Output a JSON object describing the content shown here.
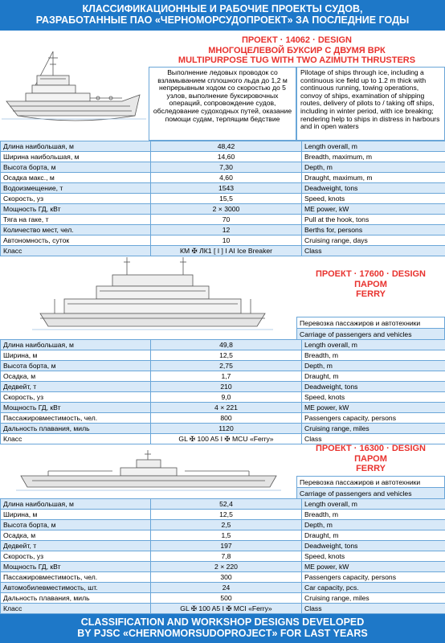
{
  "header": {
    "line1": "КЛАССИФИКАЦИОННЫЕ И РАБОЧИЕ ПРОЕКТЫ СУДОВ,",
    "line2": "РАЗРАБОТАННЫЕ ПАО «ЧЕРНОМОРСУДОПРОЕКТ» ЗА ПОСЛЕДНИЕ ГОДЫ"
  },
  "footer": {
    "line1": "CLASSIFICATION AND WORKSHOP DESIGNS DEVELOPED",
    "line2": "BY PJSC «CHERNOMORSUDOPROJECT» FOR LAST YEARS"
  },
  "projects": [
    {
      "title1": "ПРОЕКТ · 14062 · DESIGN",
      "title2": "МНОГОЦЕЛЕВОЙ БУКСИР С ДВУМЯ ВРК",
      "title3": "MULTIPURPOSE TUG WITH TWO AZIMUTH THRUSTERS",
      "desc_ru": "Выполнение ледовых проводок со взламыванием сплошного льда до 1,2 м непрерывным ходом со скоростью до 5 узлов, выполнение буксировочных операций, сопровождение судов, обследование судоходных путей, оказание помощи судам, терпящим бедствие",
      "desc_en": "Pilotage of ships through ice, including a continuous ice field up to 1.2 m thick with continuous running, towing operations, convoy of ships, examination of shipping routes, delivery of pilots to / taking off ships, including in winter period, with ice breaking; rendering help to ships in distress in harbours and in open waters",
      "specs": [
        {
          "ru": "Длина наибольшая, м",
          "val": "48,42",
          "en": "Length overall, m"
        },
        {
          "ru": "Ширина наибольшая, м",
          "val": "14,60",
          "en": "Breadth, maximum, m"
        },
        {
          "ru": "Высота борта, м",
          "val": "7,30",
          "en": "Depth, m"
        },
        {
          "ru": "Осадка макс., м",
          "val": "4,60",
          "en": "Draught, maximum, m"
        },
        {
          "ru": "Водоизмещение, т",
          "val": "1543",
          "en": "Deadweight, tons"
        },
        {
          "ru": "Скорость, уз",
          "val": "15,5",
          "en": "Speed, knots"
        },
        {
          "ru": "Мощность ГД, кВт",
          "val": "2 × 3000",
          "en": "ME power, kW"
        },
        {
          "ru": "Тяга на гаке, т",
          "val": "70",
          "en": "Pull at the hook, tons"
        },
        {
          "ru": "Количество мест, чел.",
          "val": "12",
          "en": "Berths for, persons"
        },
        {
          "ru": "Автономность, суток",
          "val": "10",
          "en": "Cruising range, days"
        },
        {
          "ru": "Класс",
          "val": "КМ ✠ ЛК1 [ I ] I AI Ice Breaker",
          "en": "Class"
        }
      ]
    },
    {
      "title1": "ПРОЕКТ · 17600 · DESIGN",
      "title2": "ПАРОМ",
      "title3": "FERRY",
      "purpose_ru": "Перевозка пассажиров и автотехники",
      "purpose_en": "Carriage of passengers and vehicles",
      "specs": [
        {
          "ru": "Длина наибольшая, м",
          "val": "49,8",
          "en": "Length overall, m"
        },
        {
          "ru": "Ширина, м",
          "val": "12,5",
          "en": "Breadth, m"
        },
        {
          "ru": "Высота борта, м",
          "val": "2,75",
          "en": "Depth, m"
        },
        {
          "ru": "Осадка, м",
          "val": "1,7",
          "en": "Draught, m"
        },
        {
          "ru": "Дедвейт, т",
          "val": "210",
          "en": "Deadweight, tons"
        },
        {
          "ru": "Скорость, уз",
          "val": "9,0",
          "en": "Speed, knots"
        },
        {
          "ru": "Мощность ГД, кВт",
          "val": "4 × 221",
          "en": "ME power, kW"
        },
        {
          "ru": "Пассажировместимость, чел.",
          "val": "800",
          "en": "Passengers capacity, persons"
        },
        {
          "ru": "Дальность плавания, миль",
          "val": "1120",
          "en": "Cruising range, miles"
        },
        {
          "ru": "Класс",
          "val": "GL ✠ 100 A5 I ✠ MCU «Ferry»",
          "en": "Class"
        }
      ]
    },
    {
      "title1": "ПРОЕКТ · 16300 · DESIGN",
      "title2": "ПАРОМ",
      "title3": "FERRY",
      "purpose_ru": "Перевозка пассажиров и автотехники",
      "purpose_en": "Carriage of passengers and vehicles",
      "specs": [
        {
          "ru": "Длина наибольшая, м",
          "val": "52,4",
          "en": "Length overall, m"
        },
        {
          "ru": "Ширина, м",
          "val": "12,5",
          "en": "Breadth, m"
        },
        {
          "ru": "Высота борта, м",
          "val": "2,5",
          "en": "Depth, m"
        },
        {
          "ru": "Осадка, м",
          "val": "1,5",
          "en": "Draught, m"
        },
        {
          "ru": "Дедвейт, т",
          "val": "197",
          "en": "Deadweight, tons"
        },
        {
          "ru": "Скорость, уз",
          "val": "7,8",
          "en": "Speed, knots"
        },
        {
          "ru": "Мощность ГД, кВт",
          "val": "2 × 220",
          "en": "ME power, kW"
        },
        {
          "ru": "Пассажировместимость, чел.",
          "val": "300",
          "en": "Passengers capacity, persons"
        },
        {
          "ru": "Автомобилевместимость, шт.",
          "val": "24",
          "en": "Car capacity, pcs."
        },
        {
          "ru": "Дальность плавания, миль",
          "val": "500",
          "en": "Cruising range, miles"
        },
        {
          "ru": "Класс",
          "val": "GL ✠ 100 A5 I ✠ MCI «Ferry»",
          "en": "Class"
        }
      ]
    }
  ]
}
